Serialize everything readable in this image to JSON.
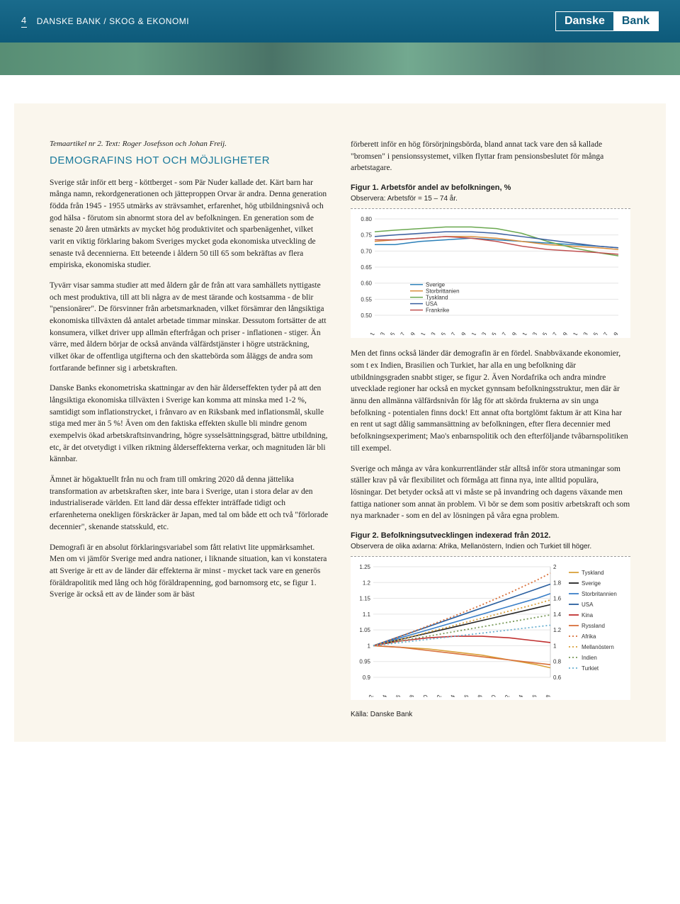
{
  "header": {
    "page_number": "4",
    "breadcrumb": "DANSKE BANK / SKOG & EKONOMI",
    "logo_left": "Danske",
    "logo_right": "Bank"
  },
  "article": {
    "tag": "Temaartikel nr 2. Text: Roger Josefsson och Johan Freij.",
    "title": "DEMOGRAFINS HOT OCH MÖJLIGHETER",
    "left_paras": [
      "Sverige står inför ett berg - köttberget - som Pär Nuder kallade det. Kärt barn har många namn, rekordgenerationen och jätteproppen Orvar är andra. Denna generation födda från 1945 - 1955 utmärks av strävsamhet, erfarenhet, hög utbildningsnivå och god hälsa - förutom sin abnormt stora del av befolkningen. En generation som de senaste 20 åren utmärkts av mycket hög produktivitet och sparbenägenhet, vilket varit en viktig förklaring bakom Sveriges mycket goda ekonomiska utveckling de senaste två decennierna. Ett beteende i åldern 50 till 65 som bekräftas av flera empiriska, ekonomiska studier.",
      "Tyvärr visar samma studier att med åldern går de från att vara samhällets nyttigaste och mest produktiva, till att bli några av de mest tärande och kostsamma - de blir \"pensionärer\". De försvinner från arbetsmarknaden, vilket försämrar den långsiktiga ekonomiska tillväxten då antalet arbetade timmar minskar. Dessutom fortsätter de att konsumera, vilket driver upp allmän efterfrågan och priser - inflationen - stiger. Än värre, med åldern börjar de också använda välfärdstjänster i högre utsträckning, vilket ökar de offentliga utgifterna och den skattebörda som åläggs de andra som fortfarande befinner sig i arbetskraften.",
      "Danske Banks ekonometriska skattningar av den här ålderseffekten tyder på att den långsiktiga ekonomiska tillväxten i Sverige kan komma att minska med 1-2 %, samtidigt som inflationstrycket, i frånvaro av en Riksbank med inflationsmål, skulle stiga med mer än 5 %! Även om den faktiska effekten skulle bli mindre genom exempelvis ökad arbetskraftsinvandring, högre sysselsättningsgrad, bättre utbildning, etc, är det otvetydigt i vilken riktning ålderseffekterna verkar, och magnituden lär bli kännbar.",
      "Ämnet är högaktuellt från nu och fram till omkring 2020 då denna jättelika transformation av arbetskraften sker, inte bara i Sverige, utan i stora delar av den industrialiserade världen. Ett land där dessa effekter inträffade tidigt och erfarenheterna onekligen förskräcker är Japan, med tal om både ett och två \"förlorade decennier\", skenande statsskuld, etc.",
      "Demografi är en absolut förklaringsvariabel som fått relativt lite uppmärksamhet. Men om vi jämför Sverige med andra nationer, i liknande situation, kan vi konstatera att Sverige är ett av de länder där effekterna är minst - mycket tack vare en generös föräldrapolitik med lång och hög föräldrapenning, god barnomsorg etc, se figur 1. Sverige är också ett av de länder som är bäst"
    ],
    "right_intro": "förberett inför en hög försörjningsbörda, bland annat tack vare den så kallade \"bromsen\" i pensionssystemet, vilken flyttar fram pensionsbeslutet för många arbetstagare.",
    "right_paras": [
      "Men det finns också länder där demografin är en fördel. Snabbväxande ekonomier, som t ex Indien, Brasilien och Turkiet, har alla en ung befolkning där utbildningsgraden snabbt stiger, se figur 2. Även Nordafrika och andra mindre utvecklade regioner har också en mycket gynnsam befolkningsstruktur, men där är ännu den allmänna välfärdsnivån för låg för att skörda frukterna av sin unga befolkning - potentialen finns dock! Ett annat ofta bortglömt faktum är att Kina har en rent ut sagt dålig sammansättning av befolkningen, efter flera decennier med befolkningsexperiment; Mao's enbarnspolitik och den efterföljande tvåbarnspolitiken till exempel.",
      "Sverige och många av våra konkurrentländer står alltså inför stora utmaningar som ställer krav på vår flexibilitet och förmåga att finna nya, inte alltid populära, lösningar. Det betyder också att vi måste se på invandring och dagens växande men fattiga nationer som annat än problem. Vi bör se dem som positiv arbetskraft och som nya marknader - som en del av lösningen på våra egna problem."
    ],
    "source": "Källa: Danske Bank"
  },
  "fig1": {
    "caption": "Figur 1. Arbetsför andel av befolkningen, %",
    "note": "Observera: Arbetsför = 15 – 74 år.",
    "type": "line",
    "ylim": [
      0.5,
      0.8
    ],
    "yticks": [
      0.5,
      0.55,
      0.6,
      0.65,
      0.7,
      0.75,
      0.8
    ],
    "xlim": [
      1991,
      2039
    ],
    "xticks": [
      1991,
      1993,
      1995,
      1997,
      1999,
      2001,
      2003,
      2005,
      2007,
      2009,
      2011,
      2013,
      2015,
      2017,
      2019,
      2021,
      2023,
      2025,
      2027,
      2029,
      2031,
      2033,
      2035,
      2037,
      2039
    ],
    "background_color": "#ffffff",
    "grid_color": "#e5e5e5",
    "series": [
      {
        "name": "Sverige",
        "color": "#2a7fb8",
        "values": [
          [
            1991,
            0.72
          ],
          [
            1995,
            0.72
          ],
          [
            2000,
            0.73
          ],
          [
            2005,
            0.735
          ],
          [
            2010,
            0.74
          ],
          [
            2015,
            0.735
          ],
          [
            2020,
            0.73
          ],
          [
            2025,
            0.725
          ],
          [
            2030,
            0.72
          ],
          [
            2035,
            0.715
          ],
          [
            2039,
            0.71
          ]
        ]
      },
      {
        "name": "Storbrittanien",
        "color": "#d98c3a",
        "values": [
          [
            1991,
            0.73
          ],
          [
            1995,
            0.735
          ],
          [
            2000,
            0.74
          ],
          [
            2005,
            0.745
          ],
          [
            2010,
            0.745
          ],
          [
            2015,
            0.74
          ],
          [
            2020,
            0.73
          ],
          [
            2025,
            0.72
          ],
          [
            2030,
            0.715
          ],
          [
            2035,
            0.71
          ],
          [
            2039,
            0.705
          ]
        ]
      },
      {
        "name": "Tyskland",
        "color": "#6aa84f",
        "values": [
          [
            1991,
            0.76
          ],
          [
            1995,
            0.765
          ],
          [
            2000,
            0.77
          ],
          [
            2005,
            0.775
          ],
          [
            2010,
            0.775
          ],
          [
            2015,
            0.77
          ],
          [
            2020,
            0.755
          ],
          [
            2025,
            0.73
          ],
          [
            2030,
            0.71
          ],
          [
            2035,
            0.695
          ],
          [
            2039,
            0.685
          ]
        ]
      },
      {
        "name": "USA",
        "color": "#3a5f9f",
        "values": [
          [
            1991,
            0.745
          ],
          [
            1995,
            0.75
          ],
          [
            2000,
            0.755
          ],
          [
            2005,
            0.76
          ],
          [
            2010,
            0.76
          ],
          [
            2015,
            0.755
          ],
          [
            2020,
            0.745
          ],
          [
            2025,
            0.735
          ],
          [
            2030,
            0.725
          ],
          [
            2035,
            0.715
          ],
          [
            2039,
            0.71
          ]
        ]
      },
      {
        "name": "Frankrike",
        "color": "#c05050",
        "values": [
          [
            1991,
            0.735
          ],
          [
            1995,
            0.735
          ],
          [
            2000,
            0.74
          ],
          [
            2005,
            0.745
          ],
          [
            2010,
            0.74
          ],
          [
            2015,
            0.73
          ],
          [
            2020,
            0.715
          ],
          [
            2025,
            0.705
          ],
          [
            2030,
            0.7
          ],
          [
            2035,
            0.695
          ],
          [
            2039,
            0.69
          ]
        ]
      }
    ]
  },
  "fig2": {
    "caption": "Figur 2. Befolkningsutvecklingen indexerad från 2012.",
    "note": "Observera de olika axlarna: Afrika, Mellanöstern, Indien och Turkiet till höger.",
    "type": "line",
    "ylim_left": [
      0.9,
      1.25
    ],
    "yticks_left": [
      0.9,
      0.95,
      1.0,
      1.05,
      1.1,
      1.15,
      1.2,
      1.25
    ],
    "ylim_right": [
      0.6,
      2.0
    ],
    "yticks_right": [
      0.6,
      0.8,
      1.0,
      1.2,
      1.4,
      1.6,
      1.8,
      2.0
    ],
    "xlim": [
      2012,
      2038
    ],
    "xticks": [
      2012,
      2014,
      2016,
      2018,
      2020,
      2022,
      2024,
      2026,
      2028,
      2030,
      2032,
      2034,
      2036,
      2038
    ],
    "background_color": "#ffffff",
    "grid_color": "#e5e5e5",
    "series_left": [
      {
        "name": "Tyskland",
        "color": "#d9a03a",
        "dash": "none",
        "values": [
          [
            2012,
            1.0
          ],
          [
            2016,
            0.995
          ],
          [
            2020,
            0.99
          ],
          [
            2024,
            0.98
          ],
          [
            2028,
            0.97
          ],
          [
            2032,
            0.955
          ],
          [
            2036,
            0.94
          ],
          [
            2038,
            0.93
          ]
        ]
      },
      {
        "name": "Sverige",
        "color": "#222222",
        "dash": "none",
        "values": [
          [
            2012,
            1.0
          ],
          [
            2016,
            1.02
          ],
          [
            2020,
            1.04
          ],
          [
            2024,
            1.06
          ],
          [
            2028,
            1.08
          ],
          [
            2032,
            1.1
          ],
          [
            2036,
            1.12
          ],
          [
            2038,
            1.13
          ]
        ]
      },
      {
        "name": "Storbritannien",
        "color": "#3a7fc8",
        "dash": "none",
        "values": [
          [
            2012,
            1.0
          ],
          [
            2016,
            1.025
          ],
          [
            2020,
            1.05
          ],
          [
            2024,
            1.075
          ],
          [
            2028,
            1.1
          ],
          [
            2032,
            1.125
          ],
          [
            2036,
            1.15
          ],
          [
            2038,
            1.165
          ]
        ]
      },
      {
        "name": "USA",
        "color": "#2a5f9f",
        "dash": "none",
        "values": [
          [
            2012,
            1.0
          ],
          [
            2016,
            1.03
          ],
          [
            2020,
            1.06
          ],
          [
            2024,
            1.09
          ],
          [
            2028,
            1.12
          ],
          [
            2032,
            1.15
          ],
          [
            2036,
            1.18
          ],
          [
            2038,
            1.195
          ]
        ]
      },
      {
        "name": "Kina",
        "color": "#c03030",
        "dash": "none",
        "values": [
          [
            2012,
            1.0
          ],
          [
            2016,
            1.015
          ],
          [
            2020,
            1.025
          ],
          [
            2024,
            1.03
          ],
          [
            2028,
            1.03
          ],
          [
            2032,
            1.025
          ],
          [
            2036,
            1.015
          ],
          [
            2038,
            1.01
          ]
        ]
      },
      {
        "name": "Ryssland",
        "color": "#d8703a",
        "dash": "none",
        "values": [
          [
            2012,
            1.0
          ],
          [
            2016,
            0.995
          ],
          [
            2020,
            0.985
          ],
          [
            2024,
            0.975
          ],
          [
            2028,
            0.965
          ],
          [
            2032,
            0.955
          ],
          [
            2036,
            0.945
          ],
          [
            2038,
            0.94
          ]
        ]
      }
    ],
    "series_right": [
      {
        "name": "Afrika",
        "color": "#d8703a",
        "dash": "dot",
        "values": [
          [
            2012,
            1.0
          ],
          [
            2016,
            1.12
          ],
          [
            2020,
            1.25
          ],
          [
            2024,
            1.38
          ],
          [
            2028,
            1.52
          ],
          [
            2032,
            1.67
          ],
          [
            2036,
            1.83
          ],
          [
            2038,
            1.92
          ]
        ]
      },
      {
        "name": "Mellanöstern",
        "color": "#d9a03a",
        "dash": "dot",
        "values": [
          [
            2012,
            1.0
          ],
          [
            2016,
            1.08
          ],
          [
            2020,
            1.17
          ],
          [
            2024,
            1.26
          ],
          [
            2028,
            1.35
          ],
          [
            2032,
            1.44
          ],
          [
            2036,
            1.53
          ],
          [
            2038,
            1.58
          ]
        ]
      },
      {
        "name": "Indien",
        "color": "#7a9a5a",
        "dash": "dot",
        "values": [
          [
            2012,
            1.0
          ],
          [
            2016,
            1.06
          ],
          [
            2020,
            1.12
          ],
          [
            2024,
            1.18
          ],
          [
            2028,
            1.24
          ],
          [
            2032,
            1.3
          ],
          [
            2036,
            1.36
          ],
          [
            2038,
            1.39
          ]
        ]
      },
      {
        "name": "Turkiet",
        "color": "#6ab0d0",
        "dash": "dot",
        "values": [
          [
            2012,
            1.0
          ],
          [
            2016,
            1.04
          ],
          [
            2020,
            1.08
          ],
          [
            2024,
            1.12
          ],
          [
            2028,
            1.16
          ],
          [
            2032,
            1.2
          ],
          [
            2036,
            1.24
          ],
          [
            2038,
            1.26
          ]
        ]
      }
    ]
  }
}
